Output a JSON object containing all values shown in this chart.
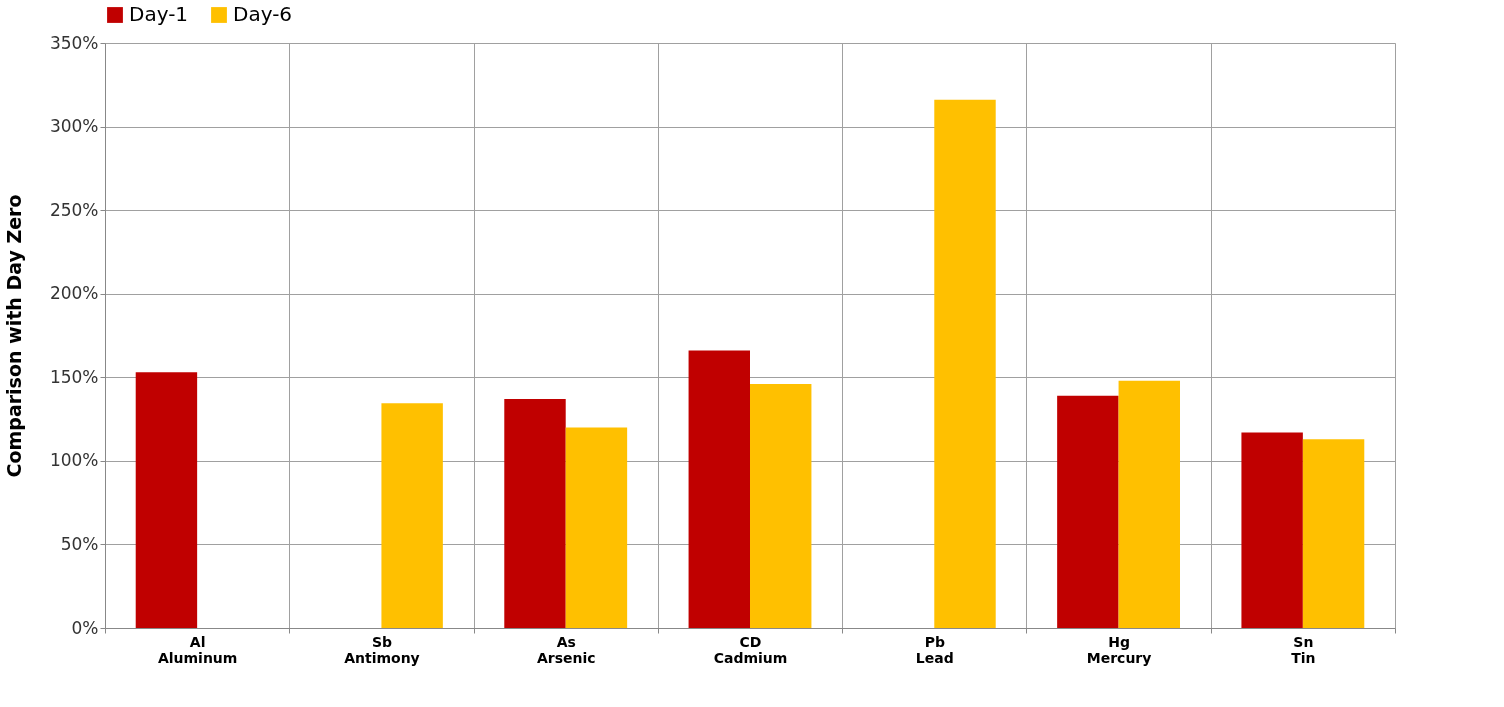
{
  "chart_data": {
    "type": "bar",
    "ylabel": "Comparison with Day Zero",
    "categories": [
      "Al\nAluminum",
      "Sb\nAntimony",
      "As\nArsenic",
      "CD\nCadmium",
      "Pb\nLead",
      "Hg\nMercury",
      "Sn\nTin"
    ],
    "series": [
      {
        "name": "Day-1",
        "color": "#c00000",
        "values": [
          153,
          null,
          137,
          166,
          null,
          139,
          117
        ]
      },
      {
        "name": "Day-6",
        "color": "#ffc000",
        "values": [
          null,
          134.5,
          120,
          146,
          316,
          148,
          113
        ]
      }
    ],
    "ylim": [
      0,
      350
    ],
    "yticks": [
      {
        "value": 0,
        "label": "0%"
      },
      {
        "value": 50,
        "label": "50%"
      },
      {
        "value": 100,
        "label": "100%"
      },
      {
        "value": 150,
        "label": "150%"
      },
      {
        "value": 200,
        "label": "200%"
      },
      {
        "value": 250,
        "label": "250%"
      },
      {
        "value": 300,
        "label": "300%"
      },
      {
        "value": 350,
        "label": "350%"
      }
    ],
    "grid": true,
    "legend": "top"
  }
}
